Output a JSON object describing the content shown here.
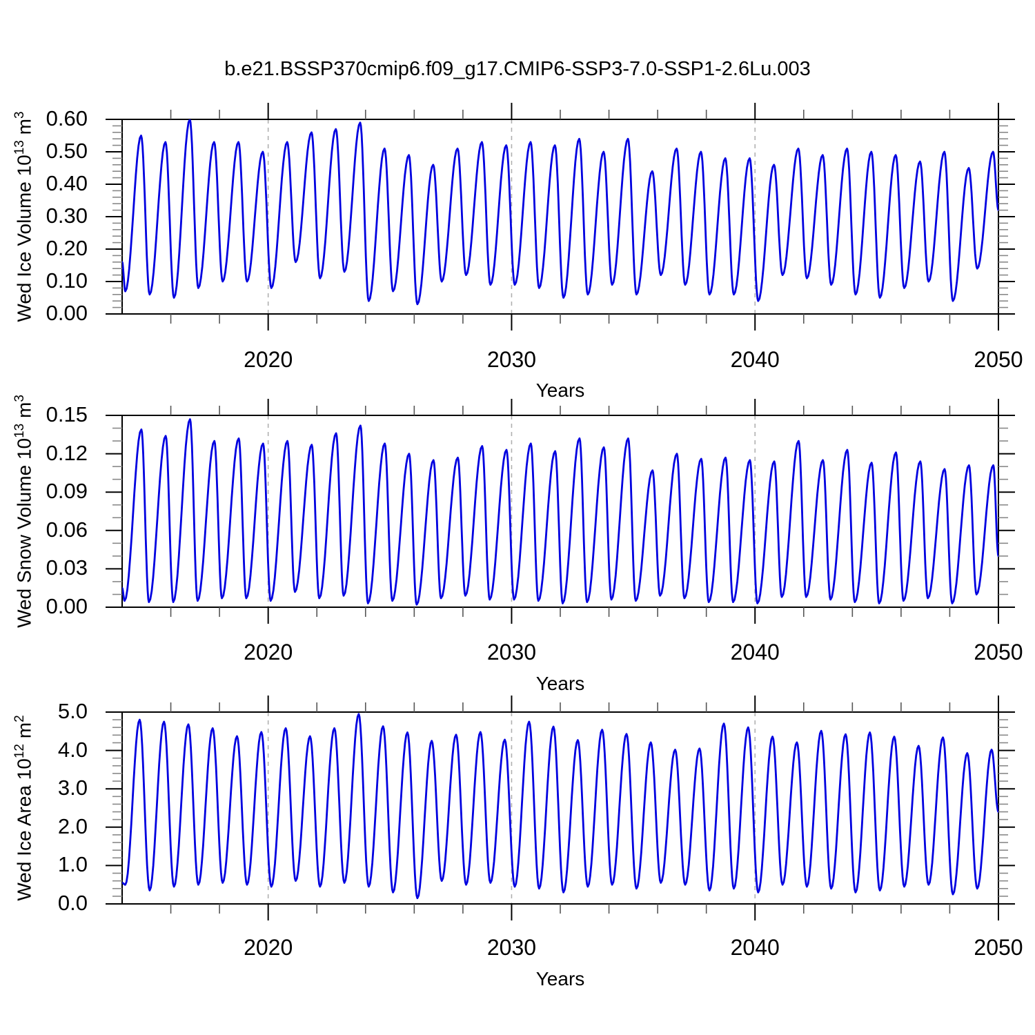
{
  "title": "b.e21.BSSP370cmip6.f09_g17.CMIP6-SSP3-7.0-SSP1-2.6Lu.003",
  "xlabel": "Years",
  "x_tick_labels": [
    "2020",
    "2030",
    "2040",
    "2050"
  ],
  "line_color": "#0000e0",
  "grid_color": "#b0b0b0",
  "panels": [
    {
      "name": "ice-volume",
      "ylabel": {
        "base": "Wed Ice Volume 10",
        "exp1": "13",
        "unit": " m",
        "exp2": "3"
      }
    },
    {
      "name": "snow-volume",
      "ylabel": {
        "base": "Wed Snow Volume 10",
        "exp1": "13",
        "unit": " m",
        "exp2": "3"
      }
    },
    {
      "name": "ice-area",
      "ylabel": {
        "base": "Wed Ice Area 10",
        "exp1": "12",
        "unit": " m",
        "exp2": "2"
      }
    }
  ],
  "chart_data": [
    {
      "type": "line",
      "series_name": "Wed Ice Volume",
      "title": "b.e21.BSSP370cmip6.f09_g17.CMIP6-SSP3-7.0-SSP1-2.6Lu.003",
      "xlabel": "Years",
      "ylabel": "Wed Ice Volume 10^13 m^3",
      "xlim": [
        2014,
        2050
      ],
      "ylim": [
        0,
        0.6
      ],
      "x_major_ticks": [
        2020,
        2030,
        2040,
        2050
      ],
      "x_minor_step_years": 2,
      "gridline_years": [
        2020,
        2030,
        2040
      ],
      "y_major_ticks": [
        0.0,
        0.1,
        0.2,
        0.3,
        0.4,
        0.5,
        0.6
      ],
      "y_tick_labels": [
        "0.00",
        "0.10",
        "0.20",
        "0.30",
        "0.40",
        "0.50",
        "0.60"
      ],
      "y_minor_step": 0.02,
      "grid": false,
      "legend": "none",
      "seasonal_cycle": {
        "start_year": 2014,
        "years": [
          2014,
          2015,
          2016,
          2017,
          2018,
          2019,
          2020,
          2021,
          2022,
          2023,
          2024,
          2025,
          2026,
          2027,
          2028,
          2029,
          2030,
          2031,
          2032,
          2033,
          2034,
          2035,
          2036,
          2037,
          2038,
          2039,
          2040,
          2041,
          2042,
          2043,
          2044,
          2045,
          2046,
          2047,
          2048,
          2049
        ],
        "annual_max": [
          0.55,
          0.53,
          0.6,
          0.53,
          0.53,
          0.5,
          0.53,
          0.56,
          0.57,
          0.59,
          0.51,
          0.49,
          0.46,
          0.51,
          0.53,
          0.52,
          0.53,
          0.52,
          0.54,
          0.5,
          0.54,
          0.44,
          0.51,
          0.5,
          0.48,
          0.48,
          0.46,
          0.51,
          0.49,
          0.51,
          0.5,
          0.49,
          0.47,
          0.5,
          0.45,
          0.5
        ],
        "annual_min": [
          0.07,
          0.06,
          0.05,
          0.08,
          0.1,
          0.1,
          0.08,
          0.16,
          0.11,
          0.13,
          0.04,
          0.07,
          0.03,
          0.1,
          0.12,
          0.09,
          0.09,
          0.08,
          0.05,
          0.06,
          0.09,
          0.06,
          0.12,
          0.09,
          0.06,
          0.06,
          0.04,
          0.12,
          0.11,
          0.09,
          0.06,
          0.05,
          0.08,
          0.1,
          0.04,
          0.14
        ],
        "min_phase": 0.13,
        "max_phase": 0.78,
        "start_value": 0.16,
        "end_year": 2050.0,
        "end_value": 0.32
      }
    },
    {
      "type": "line",
      "series_name": "Wed Snow Volume",
      "xlabel": "Years",
      "ylabel": "Wed Snow Volume 10^13 m^3",
      "xlim": [
        2014,
        2050
      ],
      "ylim": [
        0,
        0.15
      ],
      "x_major_ticks": [
        2020,
        2030,
        2040,
        2050
      ],
      "x_minor_step_years": 2,
      "gridline_years": [
        2020,
        2030,
        2040
      ],
      "y_major_ticks": [
        0.0,
        0.03,
        0.06,
        0.09,
        0.12,
        0.15
      ],
      "y_tick_labels": [
        "0.00",
        "0.03",
        "0.06",
        "0.09",
        "0.12",
        "0.15"
      ],
      "y_minor_step": 0.01,
      "grid": false,
      "legend": "none",
      "seasonal_cycle": {
        "start_year": 2014,
        "years": [
          2014,
          2015,
          2016,
          2017,
          2018,
          2019,
          2020,
          2021,
          2022,
          2023,
          2024,
          2025,
          2026,
          2027,
          2028,
          2029,
          2030,
          2031,
          2032,
          2033,
          2034,
          2035,
          2036,
          2037,
          2038,
          2039,
          2040,
          2041,
          2042,
          2043,
          2044,
          2045,
          2046,
          2047,
          2048,
          2049
        ],
        "annual_max": [
          0.139,
          0.134,
          0.147,
          0.13,
          0.132,
          0.128,
          0.13,
          0.127,
          0.136,
          0.142,
          0.128,
          0.12,
          0.115,
          0.117,
          0.126,
          0.123,
          0.128,
          0.122,
          0.132,
          0.125,
          0.132,
          0.107,
          0.12,
          0.116,
          0.117,
          0.115,
          0.114,
          0.13,
          0.115,
          0.123,
          0.113,
          0.121,
          0.114,
          0.108,
          0.111,
          0.111
        ],
        "annual_min": [
          0.005,
          0.004,
          0.004,
          0.005,
          0.007,
          0.007,
          0.005,
          0.012,
          0.007,
          0.009,
          0.003,
          0.005,
          0.002,
          0.007,
          0.009,
          0.006,
          0.006,
          0.005,
          0.003,
          0.004,
          0.006,
          0.005,
          0.009,
          0.007,
          0.004,
          0.004,
          0.003,
          0.008,
          0.008,
          0.006,
          0.004,
          0.003,
          0.005,
          0.007,
          0.003,
          0.01
        ],
        "min_phase": 0.1,
        "max_phase": 0.79,
        "start_value": 0.015,
        "end_year": 2050.0,
        "end_value": 0.04
      }
    },
    {
      "type": "line",
      "series_name": "Wed Ice Area",
      "xlabel": "Years",
      "ylabel": "Wed Ice Area 10^12 m^2",
      "xlim": [
        2014,
        2050
      ],
      "ylim": [
        0,
        5.0
      ],
      "x_major_ticks": [
        2020,
        2030,
        2040,
        2050
      ],
      "x_minor_step_years": 2,
      "gridline_years": [
        2020,
        2030,
        2040
      ],
      "y_major_ticks": [
        0.0,
        1.0,
        2.0,
        3.0,
        4.0,
        5.0
      ],
      "y_tick_labels": [
        "0.0",
        "1.0",
        "2.0",
        "3.0",
        "4.0",
        "5.0"
      ],
      "y_minor_step": 0.2,
      "grid": false,
      "legend": "none",
      "seasonal_cycle": {
        "start_year": 2014,
        "years": [
          2014,
          2015,
          2016,
          2017,
          2018,
          2019,
          2020,
          2021,
          2022,
          2023,
          2024,
          2025,
          2026,
          2027,
          2028,
          2029,
          2030,
          2031,
          2032,
          2033,
          2034,
          2035,
          2036,
          2037,
          2038,
          2039,
          2040,
          2041,
          2042,
          2043,
          2044,
          2045,
          2046,
          2047,
          2048,
          2049
        ],
        "annual_max": [
          4.8,
          4.75,
          4.68,
          4.58,
          4.37,
          4.48,
          4.58,
          4.37,
          4.58,
          4.95,
          4.63,
          4.47,
          4.25,
          4.41,
          4.48,
          4.28,
          4.75,
          4.62,
          4.27,
          4.54,
          4.43,
          4.21,
          4.02,
          4.05,
          4.7,
          4.6,
          4.36,
          4.21,
          4.51,
          4.42,
          4.47,
          4.36,
          4.12,
          4.34,
          3.93,
          4.02
        ],
        "annual_min": [
          0.5,
          0.35,
          0.45,
          0.5,
          0.55,
          0.5,
          0.45,
          0.6,
          0.45,
          0.55,
          0.45,
          0.3,
          0.15,
          0.6,
          0.5,
          0.55,
          0.45,
          0.4,
          0.3,
          0.45,
          0.5,
          0.4,
          0.55,
          0.5,
          0.35,
          0.4,
          0.3,
          0.5,
          0.45,
          0.4,
          0.3,
          0.35,
          0.45,
          0.5,
          0.25,
          0.4
        ],
        "min_phase": 0.13,
        "max_phase": 0.72,
        "start_value": 0.55,
        "end_year": 2050.0,
        "end_value": 2.4
      }
    }
  ]
}
